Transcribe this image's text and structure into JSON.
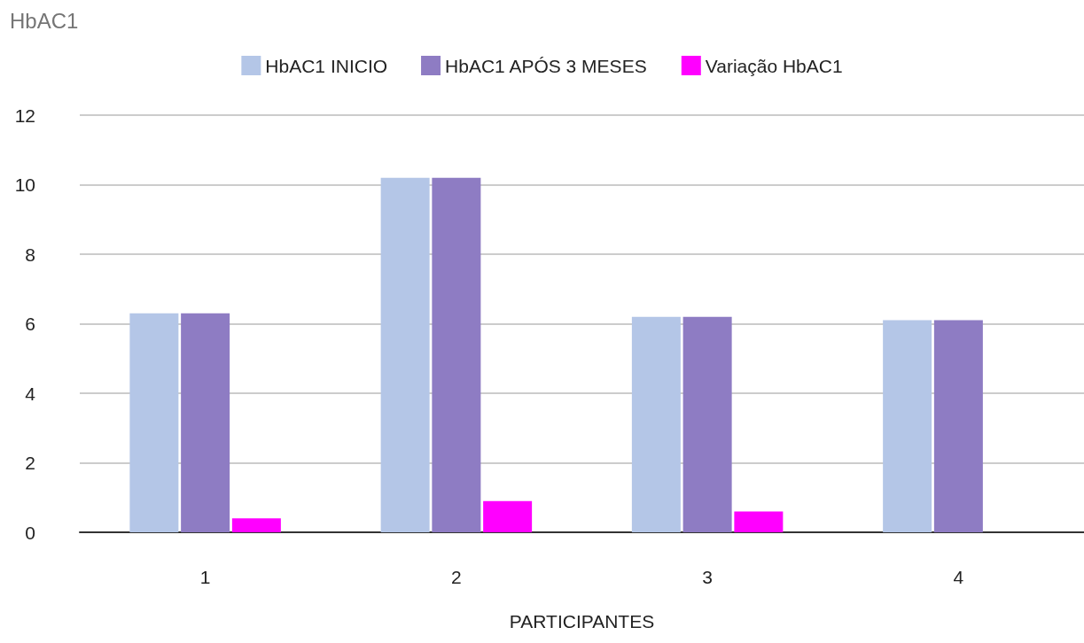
{
  "chart_data": {
    "type": "bar",
    "title": "HbAC1",
    "xlabel": "PARTICIPANTES",
    "categories": [
      "1",
      "2",
      "3",
      "4"
    ],
    "series": [
      {
        "name": "HbAC1 INICIO",
        "color": "#b4c6e7",
        "values": [
          6.3,
          10.2,
          6.2,
          6.1
        ]
      },
      {
        "name": "HbAC1 APÓS 3 MESES",
        "color": "#8e7cc3",
        "values": [
          6.3,
          10.2,
          6.2,
          6.1
        ]
      },
      {
        "name": "Variação HbAC1",
        "color": "#ff00ff",
        "values": [
          0.4,
          0.9,
          0.6,
          0
        ]
      }
    ],
    "ylim": [
      0,
      12
    ],
    "yticks": [
      0,
      2,
      4,
      6,
      8,
      10,
      12
    ],
    "grid": "y",
    "legend": "top"
  }
}
